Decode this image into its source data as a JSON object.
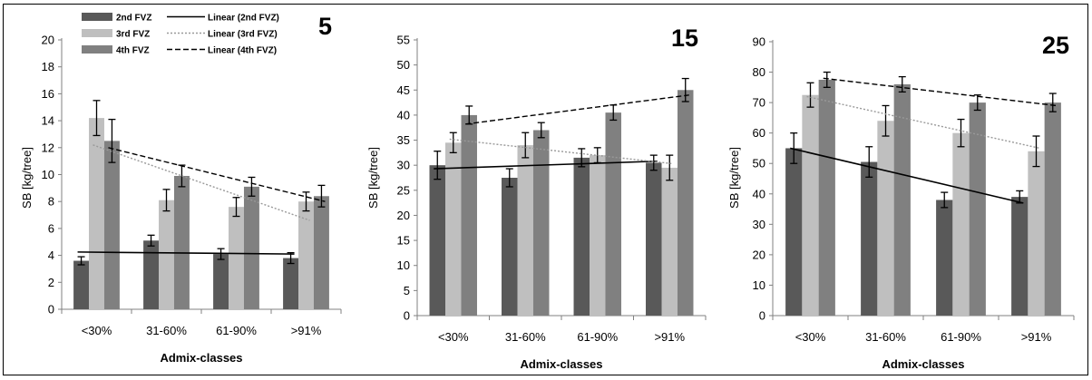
{
  "chart_data": [
    {
      "type": "bar",
      "title": "5",
      "xlabel": "Admix-classes",
      "ylabel": "SB  [kg/tree]",
      "ylim": [
        0,
        20
      ],
      "yticks": [
        0,
        2,
        4,
        6,
        8,
        10,
        12,
        14,
        16,
        18,
        20
      ],
      "categories": [
        "<30%",
        "31-60%",
        "61-90%",
        ">91%"
      ],
      "series": [
        {
          "name": "2nd FVZ",
          "values": [
            3.6,
            5.1,
            4.1,
            3.8
          ],
          "errors": [
            0.3,
            0.4,
            0.4,
            0.4
          ],
          "color": "#595959"
        },
        {
          "name": "3rd FVZ",
          "values": [
            14.2,
            8.1,
            7.6,
            8.0
          ],
          "errors": [
            1.3,
            0.8,
            0.7,
            0.7
          ],
          "color": "#bfbfbf"
        },
        {
          "name": "4th FVZ",
          "values": [
            12.5,
            9.9,
            9.1,
            8.4
          ],
          "errors": [
            1.6,
            0.8,
            0.7,
            0.8
          ],
          "color": "#808080"
        }
      ],
      "trendlines": [
        {
          "name": "Linear (2nd FVZ)",
          "series": "2nd FVZ",
          "style": "solid",
          "color": "#000000",
          "start": 4.25,
          "end": 4.1
        },
        {
          "name": "Linear (3rd FVZ)",
          "series": "3rd FVZ",
          "style": "dotted",
          "color": "#999999",
          "start": 12.2,
          "end": 6.6
        },
        {
          "name": "Linear (4th FVZ)",
          "series": "4th FVZ",
          "style": "dashed",
          "color": "#000000",
          "start": 12.0,
          "end": 8.0
        }
      ],
      "legend": "top-left",
      "grid": false
    },
    {
      "type": "bar",
      "title": "15",
      "xlabel": "Admix-classes",
      "ylabel": "SB  [kg/tree]",
      "ylim": [
        0,
        55
      ],
      "yticks": [
        0,
        5,
        10,
        15,
        20,
        25,
        30,
        35,
        40,
        45,
        50,
        55
      ],
      "categories": [
        "<30%",
        "31-60%",
        "61-90%",
        ">91%"
      ],
      "series": [
        {
          "name": "2nd FVZ",
          "values": [
            30,
            27.5,
            31.5,
            30.5
          ],
          "errors": [
            2.8,
            1.8,
            1.8,
            1.5
          ],
          "color": "#595959"
        },
        {
          "name": "3rd FVZ",
          "values": [
            34.5,
            34,
            32,
            29.5
          ],
          "errors": [
            2,
            2.5,
            1.5,
            2.5
          ],
          "color": "#bfbfbf"
        },
        {
          "name": "4th FVZ",
          "values": [
            40,
            37,
            40.5,
            45
          ],
          "errors": [
            1.8,
            1.5,
            1.5,
            2.3
          ],
          "color": "#808080"
        }
      ],
      "trendlines": [
        {
          "name": "Linear (2nd FVZ)",
          "series": "2nd FVZ",
          "style": "solid",
          "color": "#000000",
          "start": 29.3,
          "end": 30.8
        },
        {
          "name": "Linear (3rd FVZ)",
          "series": "3rd FVZ",
          "style": "dotted",
          "color": "#999999",
          "start": 35.2,
          "end": 30.3
        },
        {
          "name": "Linear (4th FVZ)",
          "series": "4th FVZ",
          "style": "dashed",
          "color": "#000000",
          "start": 38.2,
          "end": 44.0
        }
      ],
      "grid": false
    },
    {
      "type": "bar",
      "title": "25",
      "xlabel": "Admix-classes",
      "ylabel": "SB  [kg/tree]",
      "ylim": [
        0,
        90
      ],
      "yticks": [
        0,
        10,
        20,
        30,
        40,
        50,
        60,
        70,
        80,
        90
      ],
      "categories": [
        "<30%",
        "31-60%",
        "61-90%",
        ">91%"
      ],
      "series": [
        {
          "name": "2nd FVZ",
          "values": [
            55,
            50.5,
            38,
            39
          ],
          "errors": [
            5,
            5,
            2.5,
            2
          ],
          "color": "#595959"
        },
        {
          "name": "3rd FVZ",
          "values": [
            72.5,
            64,
            60,
            54
          ],
          "errors": [
            4,
            5,
            4.5,
            5
          ],
          "color": "#bfbfbf"
        },
        {
          "name": "4th FVZ",
          "values": [
            77.5,
            76,
            70,
            70
          ],
          "errors": [
            2.5,
            2.5,
            2.5,
            3
          ],
          "color": "#808080"
        }
      ],
      "trendlines": [
        {
          "name": "Linear (2nd FVZ)",
          "series": "2nd FVZ",
          "style": "solid",
          "color": "#000000",
          "start": 55,
          "end": 37
        },
        {
          "name": "Linear (3rd FVZ)",
          "series": "3rd FVZ",
          "style": "dotted",
          "color": "#999999",
          "start": 72,
          "end": 55
        },
        {
          "name": "Linear (4th FVZ)",
          "series": "4th FVZ",
          "style": "dashed",
          "color": "#000000",
          "start": 78,
          "end": 69
        }
      ],
      "grid": false
    }
  ]
}
